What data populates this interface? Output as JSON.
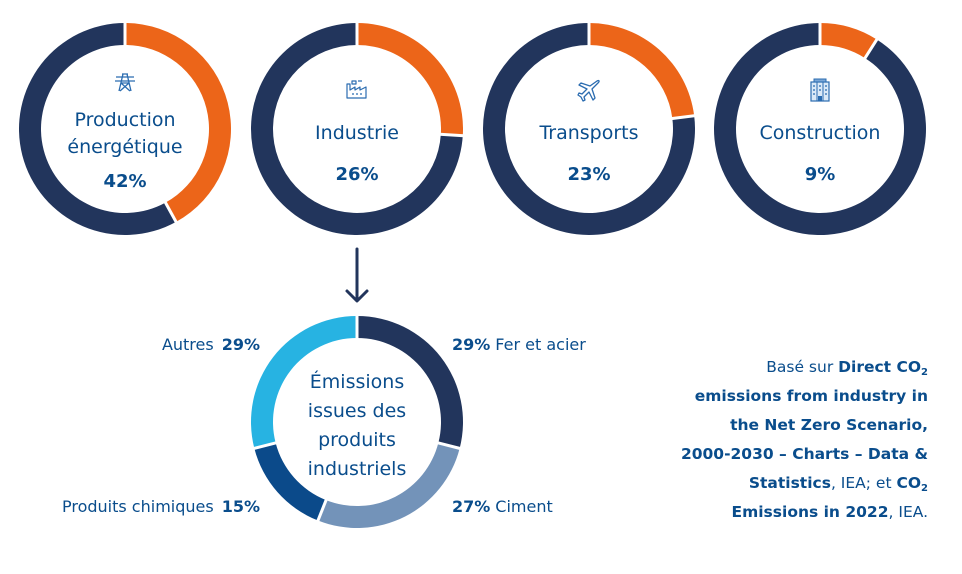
{
  "colors": {
    "highlight": "#ec6519",
    "remainder": "#22355c",
    "text": "#0a4d8c",
    "iron_steel": "#22355c",
    "cement": "#7393b9",
    "chemicals": "#0b4a8a",
    "others": "#27b3e2"
  },
  "chart_data": [
    {
      "type": "pie",
      "title": "Production énergétique",
      "title_lines": [
        "Production",
        "énergétique"
      ],
      "value": 42,
      "value_label": "42%",
      "icon": "power-pylon-icon"
    },
    {
      "type": "pie",
      "title": "Industrie",
      "title_lines": [
        "Industrie"
      ],
      "value": 26,
      "value_label": "26%",
      "icon": "factory-icon"
    },
    {
      "type": "pie",
      "title": "Transports",
      "title_lines": [
        "Transports"
      ],
      "value": 23,
      "value_label": "23%",
      "icon": "airplane-icon"
    },
    {
      "type": "pie",
      "title": "Construction",
      "title_lines": [
        "Construction"
      ],
      "value": 9,
      "value_label": "9%",
      "icon": "building-icon"
    },
    {
      "type": "pie",
      "title": "Émissions issues des produits industriels",
      "title_lines": [
        "Émissions",
        "issues des",
        "produits",
        "industriels"
      ],
      "slices": [
        {
          "label": "Fer et acier",
          "value": 29,
          "value_label": "29%",
          "color_key": "iron_steel"
        },
        {
          "label": "Ciment",
          "value": 27,
          "value_label": "27%",
          "color_key": "cement"
        },
        {
          "label": "Produits chimiques",
          "value": 15,
          "value_label": "15%",
          "color_key": "chemicals"
        },
        {
          "label": "Autres",
          "value": 29,
          "value_label": "29%",
          "color_key": "others"
        }
      ]
    }
  ],
  "source": {
    "prefix": "Basé sur ",
    "title1": "Direct CO",
    "sub1": "2",
    "title2": "emissions from industry in the Net Zero Scenario, 2000-2030 – Charts – Data & Statistics",
    "mid": ", IEA; et ",
    "title3": "CO",
    "sub2": "2",
    "title4": "Emissions in 2022",
    "suffix": ", IEA."
  }
}
